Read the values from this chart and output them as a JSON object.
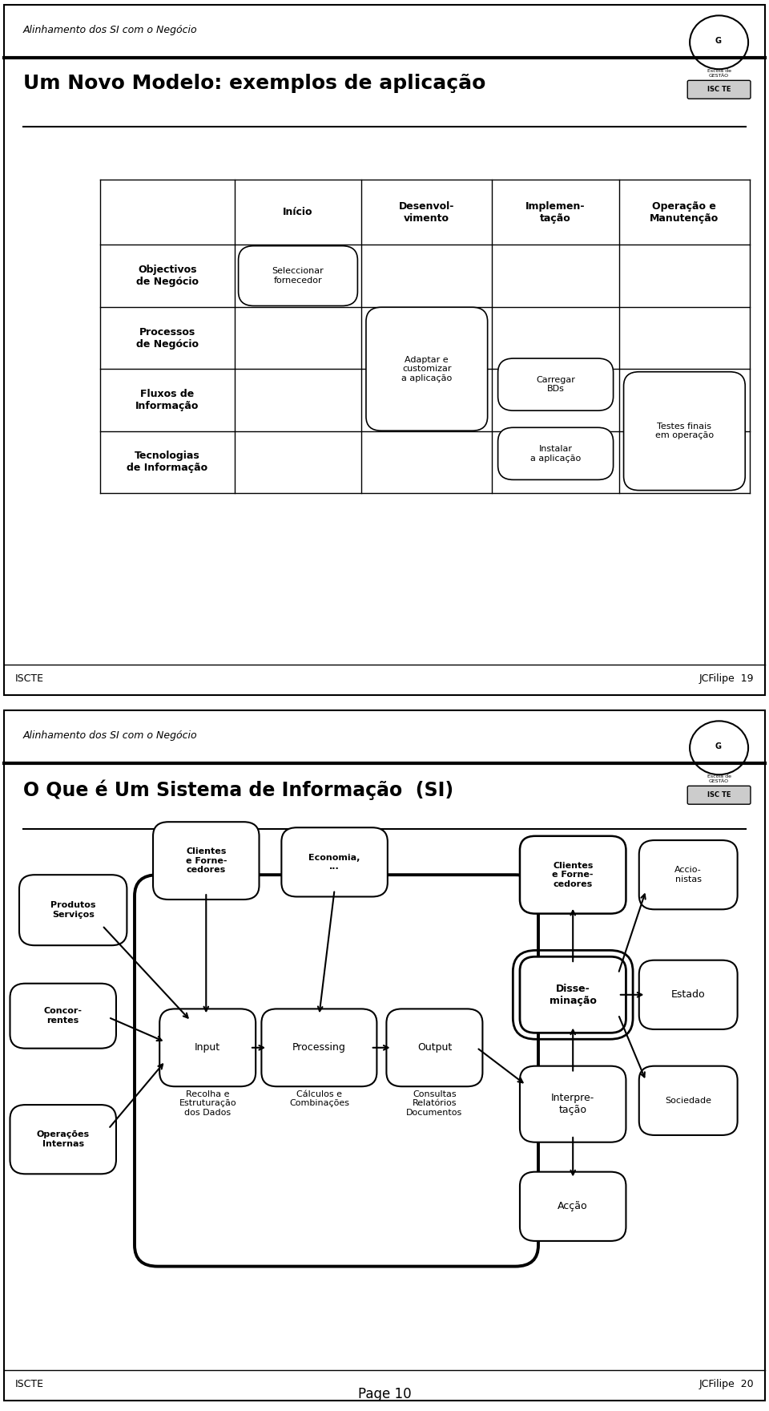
{
  "bg_color": "#ffffff",
  "slide1": {
    "header_italic": "Alinhamento dos SI com o Negócio",
    "title": "Um Novo Modelo: exemplos de aplicação",
    "footer_left": "ISCTE",
    "footer_right": "JCFilipe  19",
    "col_headers": [
      "Início",
      "Desenvol-\nvimento",
      "Implemen-\ntação",
      "Operação e\nManutenção"
    ],
    "row_headers": [
      "Objectivos\nde Negócio",
      "Processos\nde Negócio",
      "Fluxos de\nInformação",
      "Tecnologias\nde Informação"
    ]
  },
  "slide2": {
    "header_italic": "Alinhamento dos SI com o Negócio",
    "title": "O Que é Um Sistema de Informação  (SI)",
    "footer_left": "ISCTE",
    "footer_right": "JCFilipe  20"
  }
}
